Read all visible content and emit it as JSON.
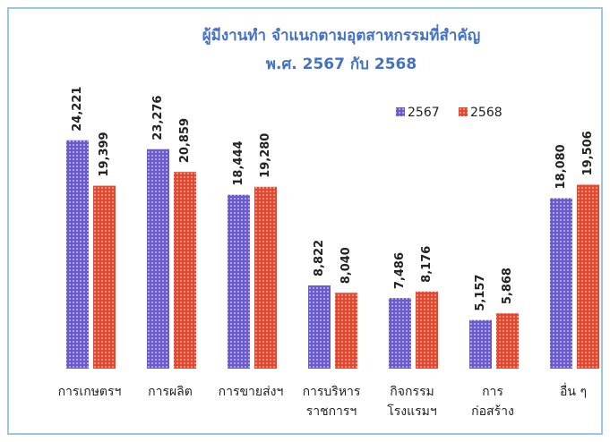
{
  "chart_data": {
    "type": "bar",
    "title": "ผู้มีงานทำ จำแนกตามอุตสาหกรรมที่สำคัญ",
    "subtitle": "พ.ศ. 2567 กับ 2568",
    "categories": [
      [
        "การเกษตรฯ"
      ],
      [
        "การผลิต"
      ],
      [
        "การขายส่งฯ"
      ],
      [
        "การบริหาร",
        "ราชการฯ"
      ],
      [
        "กิจกรรม",
        "โรงแรมฯ"
      ],
      [
        "การ",
        "ก่อสร้าง"
      ],
      [
        "อื่น ๆ"
      ]
    ],
    "series": [
      {
        "name": "2567",
        "color": "#6a5acd",
        "values": [
          24221,
          23276,
          18444,
          8822,
          7486,
          5157,
          18080
        ],
        "value_labels": [
          "24,221",
          "23,276",
          "18,444",
          "8,822",
          "7,486",
          "5,157",
          "18,080"
        ]
      },
      {
        "name": "2568",
        "color": "#e8452c",
        "values": [
          19399,
          20859,
          19280,
          8040,
          8176,
          5868,
          19506
        ],
        "value_labels": [
          "19,399",
          "20,859",
          "19,280",
          "8,040",
          "8,176",
          "5,868",
          "19,506"
        ]
      }
    ],
    "ylim": [
      0,
      26000
    ],
    "legend": "top-right"
  }
}
